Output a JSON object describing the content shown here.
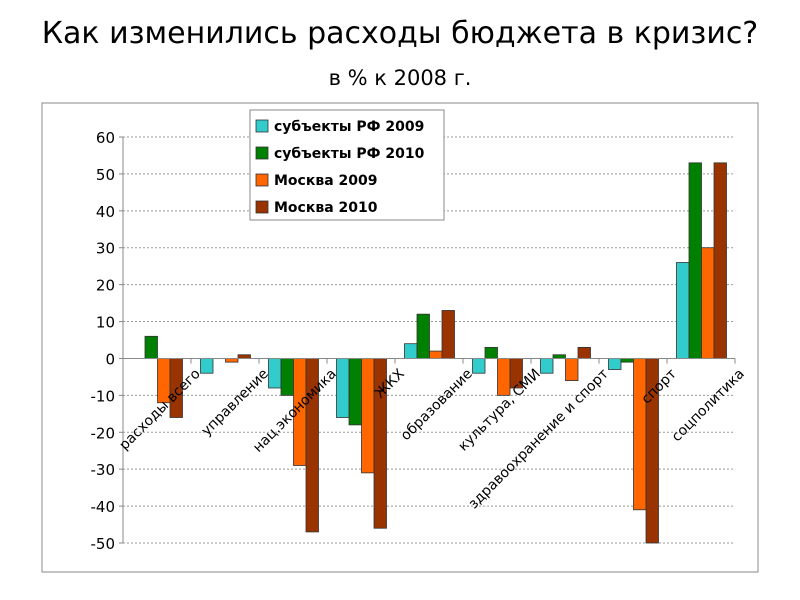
{
  "title": "Как изменились расходы бюджета в кризис?",
  "subtitle": "в % к 2008 г.",
  "chart_data": {
    "type": "bar",
    "ylim": [
      -50,
      60
    ],
    "yticks": [
      -50,
      -40,
      -30,
      -20,
      -10,
      0,
      10,
      20,
      30,
      40,
      50,
      60
    ],
    "grid": true,
    "legend_position": "top-center",
    "categories": [
      "расходы всего",
      "управление",
      "нац.экономика",
      "ЖКХ",
      "образование",
      "культура, СМИ",
      "здравоохранение и спорт",
      "спорт",
      "соцполитика"
    ],
    "series": [
      {
        "name": "субъекты РФ 2009",
        "color": "#33cccc",
        "values": [
          0,
          -4,
          -8,
          -16,
          4,
          -4,
          -4,
          -3,
          26
        ]
      },
      {
        "name": "субъекты РФ 2010",
        "color": "#008000",
        "values": [
          6,
          0,
          -10,
          -18,
          12,
          3,
          1,
          -1,
          53
        ]
      },
      {
        "name": "Москва 2009",
        "color": "#ff6600",
        "values": [
          -12,
          -1,
          -29,
          -31,
          2,
          -10,
          -6,
          -41,
          30
        ]
      },
      {
        "name": "Москва 2010",
        "color": "#993300",
        "values": [
          -16,
          1,
          -47,
          -46,
          13,
          -8,
          3,
          -50,
          53
        ]
      }
    ]
  }
}
